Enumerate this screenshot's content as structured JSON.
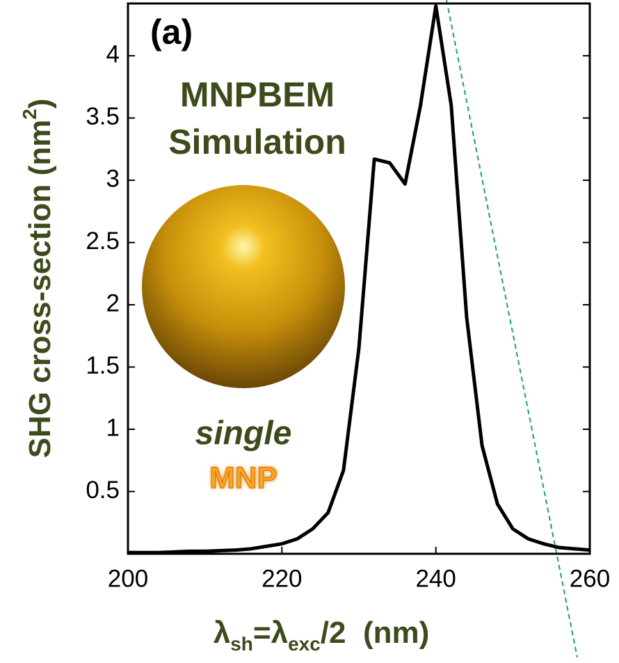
{
  "chart_data": {
    "type": "line",
    "panel_label": "(a)",
    "annotations": [
      "MNPBEM",
      "Simulation",
      "single",
      "MNP"
    ],
    "y_label": [
      "SHG cross-section (nm",
      "2",
      ")"
    ],
    "x_label": [
      "λ",
      "sh",
      "=λ",
      "exc",
      "/2  (nm)"
    ],
    "x": [
      200,
      202,
      204,
      206,
      208,
      210,
      212,
      214,
      216,
      218,
      220,
      222,
      224,
      226,
      228,
      230,
      232,
      234,
      236,
      238,
      240,
      242,
      244,
      246,
      248,
      250,
      252,
      254,
      256,
      258,
      260
    ],
    "series": [
      {
        "color": "#000000",
        "values": [
          0.01,
          0.01,
          0.01,
          0.015,
          0.02,
          0.02,
          0.025,
          0.03,
          0.04,
          0.06,
          0.08,
          0.12,
          0.2,
          0.33,
          0.67,
          1.65,
          3.17,
          3.14,
          2.97,
          3.6,
          4.4,
          3.6,
          1.9,
          0.87,
          0.4,
          0.2,
          0.12,
          0.08,
          0.05,
          0.04,
          0.03
        ]
      }
    ],
    "xlim": [
      200,
      260
    ],
    "ylim": [
      0,
      4.42
    ],
    "xticks": [
      200,
      220,
      240,
      260
    ],
    "yticks": [
      0.5,
      1,
      1.5,
      2,
      2.5,
      3,
      3.5,
      4
    ],
    "grid": false
  }
}
